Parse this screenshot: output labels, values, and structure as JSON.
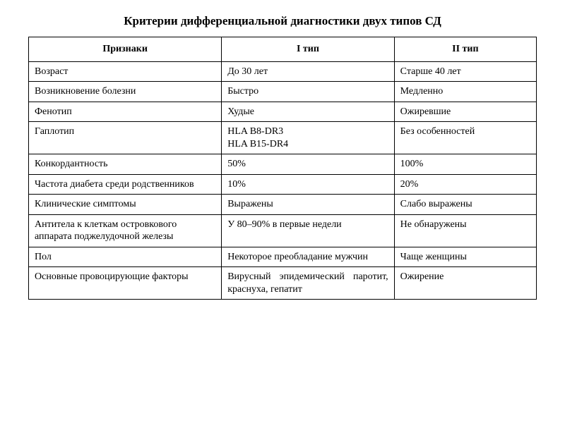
{
  "title": "Критерии дифференциальной диагностики двух типов СД",
  "table": {
    "type": "table",
    "border_color": "#000000",
    "background_color": "#ffffff",
    "text_color": "#000000",
    "font_family": "Times New Roman",
    "title_fontsize": 17,
    "cell_fontsize": 14,
    "column_widths_pct": [
      38,
      34,
      28
    ],
    "columns": [
      "Признаки",
      "I тип",
      "II тип"
    ],
    "rows": [
      {
        "c1": "Возраст",
        "c2": "До 30 лет",
        "c3": "Старше 40 лет"
      },
      {
        "c1": "Возникновение болезни",
        "c2": "Быстро",
        "c3": "Медленно"
      },
      {
        "c1": "Фенотип",
        "c2": "Худые",
        "c3": "Ожиревшие"
      },
      {
        "c1": "Гаплотип",
        "c2": "HLA B8-DR3\nHLA B15-DR4",
        "c3": "Без особенностей"
      },
      {
        "c1": "Конкордантность",
        "c2": "50%",
        "c3": "100%"
      },
      {
        "c1": "Частота диабета среди родственников",
        "c2": "10%",
        "c3": "20%"
      },
      {
        "c1": "Клинические симптомы",
        "c2": "Выражены",
        "c3": "Слабо выражены"
      },
      {
        "c1": "Антитела к клеткам островкового аппарата поджелудочной железы",
        "c2": "У 80–90% в первые недели",
        "c3": "Не обнаружены"
      },
      {
        "c1": "Пол",
        "c2": "Некоторое преобладание мужчин",
        "c3": "Чаще женщины"
      },
      {
        "c1": "Основные провоцирующие факторы",
        "c2": "Вирусный эпидемический паротит, краснуха, гепатит",
        "c2_justify": true,
        "c3": "Ожирение"
      }
    ]
  }
}
